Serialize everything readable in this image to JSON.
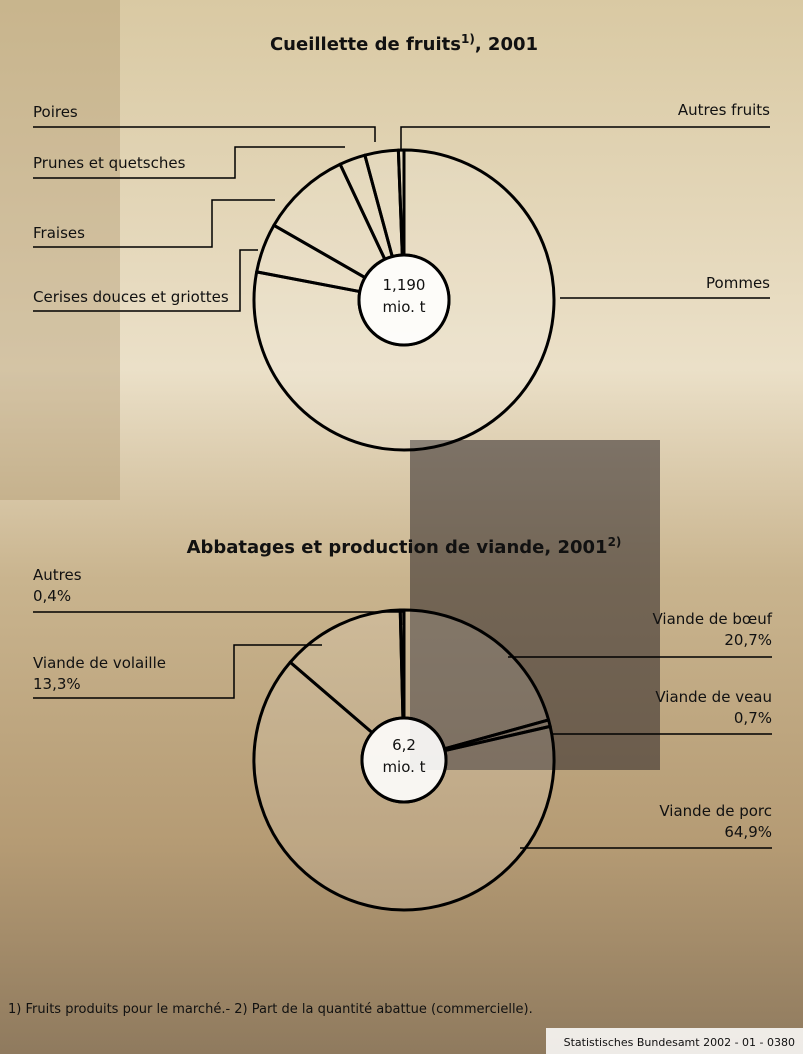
{
  "chart_data": [
    {
      "type": "pie",
      "title": "Cueillette de fruits",
      "title_sup": "1)",
      "title_suffix": ", 2001",
      "center_label": [
        "1,190",
        "mio. t"
      ],
      "categories": [
        "Pommes",
        "Cerises douces et griottes",
        "Fraises",
        "Prunes et quetsches",
        "Poires",
        "Autres fruits"
      ],
      "values": [
        78.0,
        5.3,
        9.7,
        2.8,
        3.6,
        0.6
      ],
      "color": "#000000"
    },
    {
      "type": "pie",
      "title": "Abbatages et production de viande, 2001",
      "title_sup": "2)",
      "center_label": [
        "6,2",
        "mio. t"
      ],
      "categories": [
        "Viande de bœuf",
        "Viande de veau",
        "Viande de porc",
        "Viande de volaille",
        "Autres"
      ],
      "values": [
        20.7,
        0.7,
        64.9,
        13.3,
        0.4
      ],
      "value_labels": [
        "20,7%",
        "0,7%",
        "64,9%",
        "13,3%",
        "0,4%"
      ],
      "color": "#000000"
    }
  ],
  "footnote": "1) Fruits produits pour le marché.- 2) Part de la quantité abattue (commercielle).",
  "source": "Statistisches Bundesamt 2002 - 01 - 0380"
}
